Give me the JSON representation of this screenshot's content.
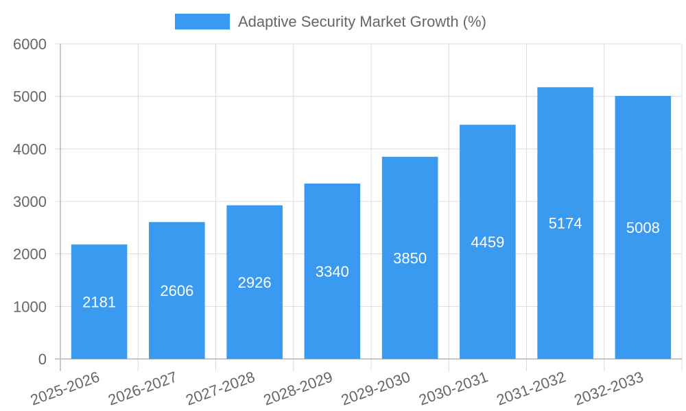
{
  "chart_data": {
    "type": "bar",
    "title": "",
    "xlabel": "",
    "ylabel": "",
    "categories": [
      "2025-2026",
      "2026-2027",
      "2027-2028",
      "2028-2029",
      "2029-2030",
      "2030-2031",
      "2031-2032",
      "2032-2033"
    ],
    "series": [
      {
        "name": "Adaptive Security Market Growth (%)",
        "values": [
          2181,
          2606,
          2926,
          3340,
          3850,
          4459,
          5174,
          5008
        ],
        "color": "#3a9af0"
      }
    ],
    "ylim": [
      0,
      6000
    ],
    "yticks": [
      0,
      1000,
      2000,
      3000,
      4000,
      5000,
      6000
    ],
    "grid": true,
    "legend": "top-center",
    "data_labels": true
  }
}
